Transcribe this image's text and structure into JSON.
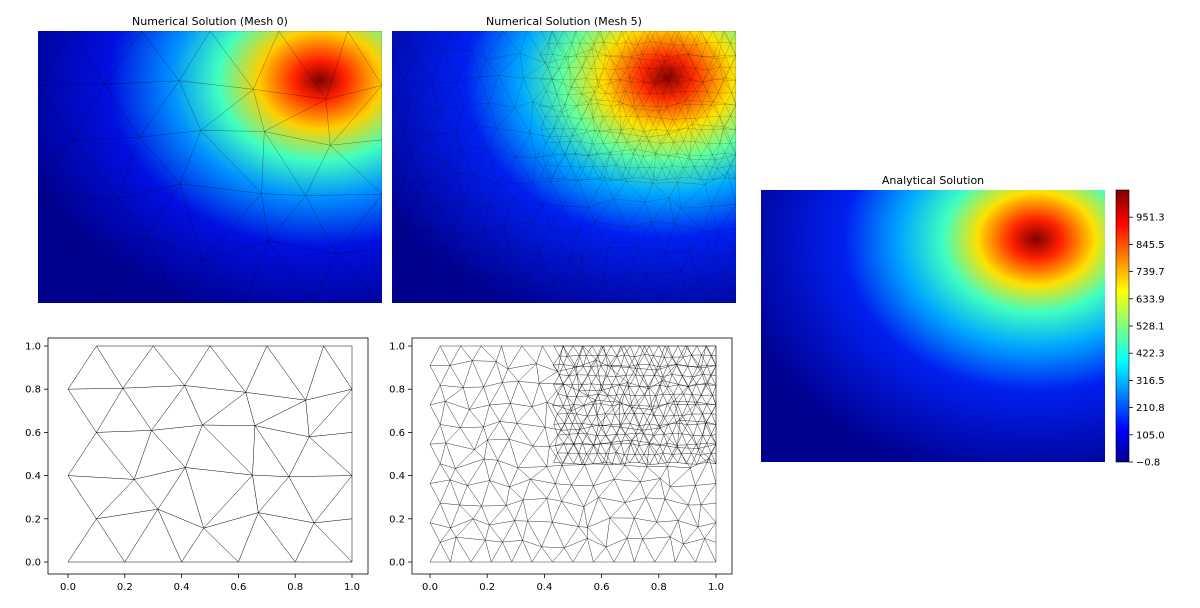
{
  "chart_data": [
    {
      "type": "heatmap",
      "title": "Numerical Solution (Mesh 0)",
      "mesh": "coarse",
      "peak": {
        "x": 0.88,
        "y": 0.83,
        "value": 1005
      },
      "note_shape": "interpolated on coarse triangulation"
    },
    {
      "type": "heatmap",
      "title": "Numerical Solution (Mesh 5)",
      "mesh": "refined",
      "peak": {
        "x": 0.82,
        "y": 0.82,
        "value": 1040
      }
    },
    {
      "type": "heatmap",
      "title": "Analytical Solution",
      "peak": {
        "x": 0.82,
        "y": 0.82,
        "value": 1050
      },
      "colorbar": {
        "colormap": "jet",
        "vmin": -0.8,
        "vmax": 1057,
        "ticks": [
          "951.3",
          "845.5",
          "739.7",
          "633.9",
          "528.1",
          "422.3",
          "316.5",
          "210.8",
          "105.0",
          "−0.8"
        ]
      }
    },
    {
      "type": "scatter",
      "title": "",
      "description": "coarse triangular mesh (Mesh 0)",
      "xlim": [
        0.0,
        1.0
      ],
      "ylim": [
        0.0,
        1.0
      ],
      "xticks": [
        "0.0",
        "0.2",
        "0.4",
        "0.6",
        "0.8",
        "1.0"
      ],
      "yticks": [
        "0.0",
        "0.2",
        "0.4",
        "0.6",
        "0.8",
        "1.0"
      ]
    },
    {
      "type": "scatter",
      "title": "",
      "description": "refined triangular mesh (Mesh 5)",
      "xlim": [
        0.0,
        1.0
      ],
      "ylim": [
        0.0,
        1.0
      ],
      "xticks": [
        "0.0",
        "0.2",
        "0.4",
        "0.6",
        "0.8",
        "1.0"
      ],
      "yticks": [
        "0.0",
        "0.2",
        "0.4",
        "0.6",
        "0.8",
        "1.0"
      ]
    }
  ]
}
